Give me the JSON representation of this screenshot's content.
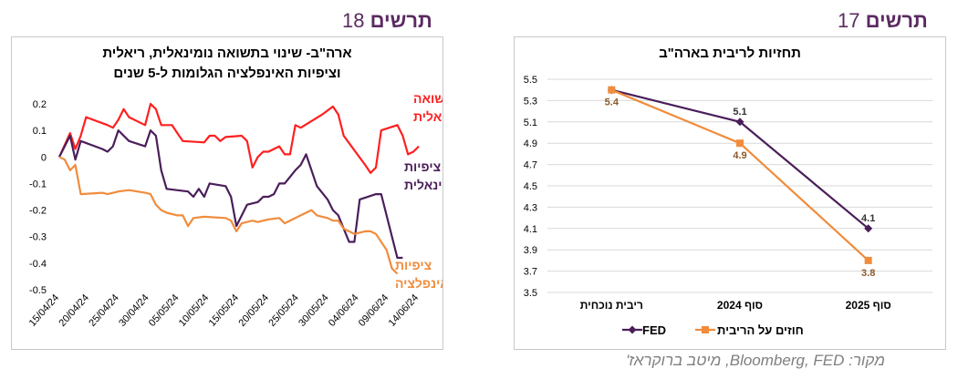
{
  "headers": {
    "left": {
      "label": "תרשים",
      "number": "18"
    },
    "right": {
      "label": "תרשים",
      "number": "17"
    }
  },
  "source": "מקור: Bloomberg, FED, מיטב ברוקראז'",
  "colors": {
    "red": "#ff1f1f",
    "purple": "#4a1e5a",
    "orange": "#f08c3c",
    "header": "#5b2a61",
    "grid": "#d9d9d9"
  },
  "chart_data": [
    {
      "type": "line",
      "title_line1": "ארה\"ב-  שינוי בתשואה נומינאלית, ריאלית",
      "title_line2": "וציפיות האינפלציה הגלומות ל-5 שנים",
      "ylim": [
        -0.5,
        0.2
      ],
      "yticks": [
        "0.2",
        "0.1",
        "0",
        "-0.1",
        "-0.2",
        "-0.3",
        "-0.4",
        "-0.5"
      ],
      "xlabels": [
        "15/04/24",
        "20/04/24",
        "25/04/24",
        "30/04/24",
        "05/05/24",
        "10/05/24",
        "15/05/24",
        "20/05/24",
        "25/05/24",
        "30/05/24",
        "04/06/24",
        "09/06/24",
        "14/06/24"
      ],
      "x_span_days": [
        0,
        62
      ],
      "series": [
        {
          "name": "תשואה ריאלית",
          "color": "#ff1f1f",
          "labels": [
            "תשואה",
            "ריאלית"
          ],
          "points": [
            [
              0,
              0
            ],
            [
              2,
              0.09
            ],
            [
              3,
              0.03
            ],
            [
              4,
              0.08
            ],
            [
              5,
              0.15
            ],
            [
              9,
              0.12
            ],
            [
              10,
              0.11
            ],
            [
              11,
              0.14
            ],
            [
              12,
              0.18
            ],
            [
              13,
              0.15
            ],
            [
              16,
              0.12
            ],
            [
              17,
              0.2
            ],
            [
              18,
              0.18
            ],
            [
              19,
              0.12
            ],
            [
              21,
              0.12
            ],
            [
              22,
              0.09
            ],
            [
              23,
              0.06
            ],
            [
              27,
              0.055
            ],
            [
              28,
              0.08
            ],
            [
              29,
              0.08
            ],
            [
              30,
              0.06
            ],
            [
              31,
              0.075
            ],
            [
              34,
              0.08
            ],
            [
              35,
              0.06
            ],
            [
              36,
              -0.04
            ],
            [
              37,
              0.0
            ],
            [
              38,
              0.02
            ],
            [
              39,
              0.02
            ],
            [
              41,
              0.04
            ],
            [
              42,
              0.01
            ],
            [
              43,
              0.01
            ],
            [
              44,
              0.12
            ],
            [
              45,
              0.11
            ],
            [
              49,
              0.16
            ],
            [
              51,
              0.19
            ],
            [
              52,
              0.16
            ],
            [
              53,
              0.08
            ],
            [
              57,
              -0.03
            ],
            [
              58,
              -0.06
            ],
            [
              59,
              -0.04
            ],
            [
              60,
              0.1
            ],
            [
              63,
              0.12
            ],
            [
              64,
              0.08
            ],
            [
              65,
              0.01
            ],
            [
              66,
              0.02
            ],
            [
              67,
              0.04
            ]
          ]
        },
        {
          "name": "ציפיות נומינאלית",
          "color": "#4a1e5a",
          "labels": [
            "ציפיות",
            "נומינאלית"
          ],
          "points": [
            [
              0,
              0
            ],
            [
              2,
              0.08
            ],
            [
              3,
              -0.01
            ],
            [
              4,
              0.06
            ],
            [
              8,
              0.03
            ],
            [
              9,
              0.02
            ],
            [
              10,
              0.04
            ],
            [
              11,
              0.1
            ],
            [
              13,
              0.06
            ],
            [
              16,
              0.04
            ],
            [
              17,
              0.1
            ],
            [
              18,
              0.08
            ],
            [
              19,
              -0.05
            ],
            [
              20,
              -0.12
            ],
            [
              24,
              -0.13
            ],
            [
              25,
              -0.15
            ],
            [
              26,
              -0.12
            ],
            [
              27,
              -0.15
            ],
            [
              28,
              -0.1
            ],
            [
              31,
              -0.11
            ],
            [
              32,
              -0.15
            ],
            [
              33,
              -0.26
            ],
            [
              35,
              -0.18
            ],
            [
              37,
              -0.17
            ],
            [
              38,
              -0.15
            ],
            [
              39,
              -0.15
            ],
            [
              40,
              -0.14
            ],
            [
              41,
              -0.1
            ],
            [
              42,
              -0.1
            ],
            [
              44,
              -0.05
            ],
            [
              45,
              -0.03
            ],
            [
              46,
              0.01
            ],
            [
              48,
              -0.11
            ],
            [
              50,
              -0.16
            ],
            [
              51,
              -0.2
            ],
            [
              52,
              -0.22
            ],
            [
              54,
              -0.32
            ],
            [
              55,
              -0.32
            ],
            [
              56,
              -0.16
            ],
            [
              59,
              -0.14
            ],
            [
              60,
              -0.14
            ],
            [
              63,
              -0.38
            ],
            [
              64,
              -0.38
            ]
          ]
        },
        {
          "name": "ציפיות האינפלציה",
          "color": "#f08c3c",
          "labels": [
            "ציפיות",
            "האינפלציה"
          ],
          "points": [
            [
              0,
              0
            ],
            [
              1,
              -0.01
            ],
            [
              2,
              -0.05
            ],
            [
              3,
              -0.03
            ],
            [
              4,
              -0.14
            ],
            [
              8,
              -0.135
            ],
            [
              9,
              -0.14
            ],
            [
              11,
              -0.13
            ],
            [
              13,
              -0.125
            ],
            [
              16,
              -0.135
            ],
            [
              17,
              -0.14
            ],
            [
              18,
              -0.18
            ],
            [
              19,
              -0.2
            ],
            [
              20,
              -0.21
            ],
            [
              22,
              -0.22
            ],
            [
              23,
              -0.22
            ],
            [
              24,
              -0.26
            ],
            [
              25,
              -0.23
            ],
            [
              27,
              -0.225
            ],
            [
              31,
              -0.23
            ],
            [
              32,
              -0.24
            ],
            [
              33,
              -0.28
            ],
            [
              34,
              -0.25
            ],
            [
              36,
              -0.24
            ],
            [
              37,
              -0.245
            ],
            [
              38,
              -0.24
            ],
            [
              39,
              -0.235
            ],
            [
              41,
              -0.23
            ],
            [
              42,
              -0.25
            ],
            [
              45,
              -0.22
            ],
            [
              47,
              -0.2
            ],
            [
              48,
              -0.22
            ],
            [
              50,
              -0.23
            ],
            [
              51,
              -0.24
            ],
            [
              52,
              -0.24
            ],
            [
              53,
              -0.27
            ],
            [
              54,
              -0.28
            ],
            [
              55,
              -0.29
            ],
            [
              57,
              -0.28
            ],
            [
              58,
              -0.28
            ],
            [
              59,
              -0.29
            ],
            [
              61,
              -0.35
            ],
            [
              62,
              -0.42
            ],
            [
              63,
              -0.44
            ]
          ]
        }
      ]
    },
    {
      "type": "line",
      "title": "תחזיות לריבית בארה\"ב",
      "ylim": [
        3.5,
        5.5
      ],
      "yticks": [
        "5.5",
        "5.3",
        "5.1",
        "4.9",
        "4.7",
        "4.5",
        "4.3",
        "4.1",
        "3.9",
        "3.7",
        "3.5"
      ],
      "categories": [
        "ריבית נוכחית",
        "סוף 2024",
        "סוף 2025"
      ],
      "series": [
        {
          "name": "FED",
          "color": "#4a1e5a",
          "marker": "diamond",
          "values": [
            5.4,
            5.1,
            4.1
          ],
          "data_labels": [
            "",
            "5.1",
            "4.1"
          ]
        },
        {
          "name": "חוזים על הריבית",
          "color": "#f08c3c",
          "marker": "square",
          "values": [
            5.4,
            4.9,
            3.8
          ],
          "data_labels": [
            "5.4",
            "4.9",
            "3.8"
          ]
        }
      ]
    }
  ]
}
